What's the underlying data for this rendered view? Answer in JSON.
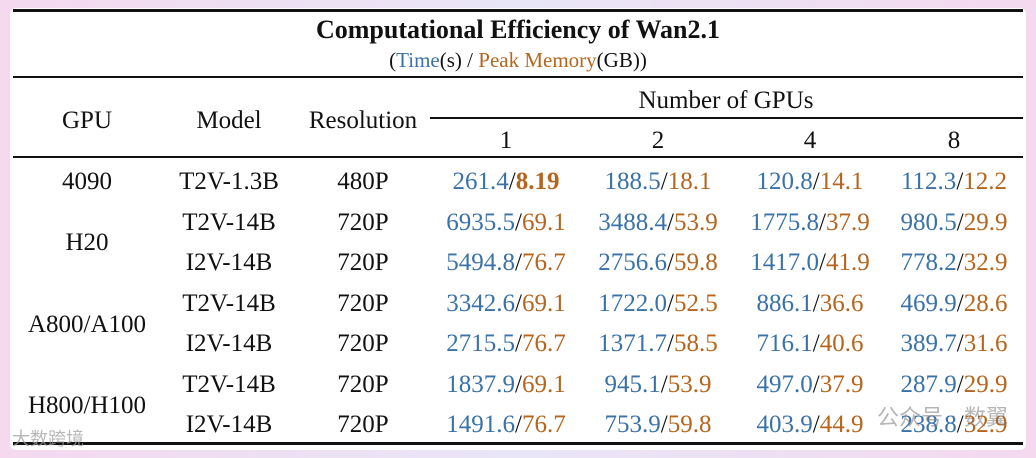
{
  "title": "Computational Efficiency of Wan2.1",
  "subtitle": {
    "open": "(",
    "time": "Time",
    "unit_time": "(s)",
    "sep": " / ",
    "mem": "Peak Memory",
    "unit_mem": "(GB)",
    "close": ")"
  },
  "headers": {
    "gpu": "GPU",
    "model": "Model",
    "resolution": "Resolution",
    "num_gpus": "Number of GPUs",
    "counts": [
      "1",
      "2",
      "4",
      "8"
    ]
  },
  "gpu_groups": [
    "4090",
    "H20",
    "A800/A100",
    "H800/H100"
  ],
  "rows": [
    {
      "model": "T2V-1.3B",
      "res": "480P",
      "cells": [
        [
          "261.4",
          "8.19"
        ],
        [
          "188.5",
          "18.1"
        ],
        [
          "120.8",
          "14.1"
        ],
        [
          "112.3",
          "12.2"
        ]
      ]
    },
    {
      "model": "T2V-14B",
      "res": "720P",
      "cells": [
        [
          "6935.5",
          "69.1"
        ],
        [
          "3488.4",
          "53.9"
        ],
        [
          "1775.8",
          "37.9"
        ],
        [
          "980.5",
          "29.9"
        ]
      ]
    },
    {
      "model": "I2V-14B",
      "res": "720P",
      "cells": [
        [
          "5494.8",
          "76.7"
        ],
        [
          "2756.6",
          "59.8"
        ],
        [
          "1417.0",
          "41.9"
        ],
        [
          "778.2",
          "32.9"
        ]
      ]
    },
    {
      "model": "T2V-14B",
      "res": "720P",
      "cells": [
        [
          "3342.6",
          "69.1"
        ],
        [
          "1722.0",
          "52.5"
        ],
        [
          "886.1",
          "36.6"
        ],
        [
          "469.9",
          "28.6"
        ]
      ]
    },
    {
      "model": "I2V-14B",
      "res": "720P",
      "cells": [
        [
          "2715.5",
          "76.7"
        ],
        [
          "1371.7",
          "58.5"
        ],
        [
          "716.1",
          "40.6"
        ],
        [
          "389.7",
          "31.6"
        ]
      ]
    },
    {
      "model": "T2V-14B",
      "res": "720P",
      "cells": [
        [
          "1837.9",
          "69.1"
        ],
        [
          "945.1",
          "53.9"
        ],
        [
          "497.0",
          "37.9"
        ],
        [
          "287.9",
          "29.9"
        ]
      ]
    },
    {
      "model": "I2V-14B",
      "res": "720P",
      "cells": [
        [
          "1491.6",
          "76.7"
        ],
        [
          "753.9",
          "59.8"
        ],
        [
          "403.9",
          "44.9"
        ],
        [
          "238.8",
          "32.9"
        ]
      ]
    }
  ],
  "watermark": "公众号 · 数翼",
  "watermark_left": "大数跨境",
  "colors": {
    "time": "#3a72a8",
    "memory": "#b5651d",
    "background": "#f4d9ef"
  }
}
